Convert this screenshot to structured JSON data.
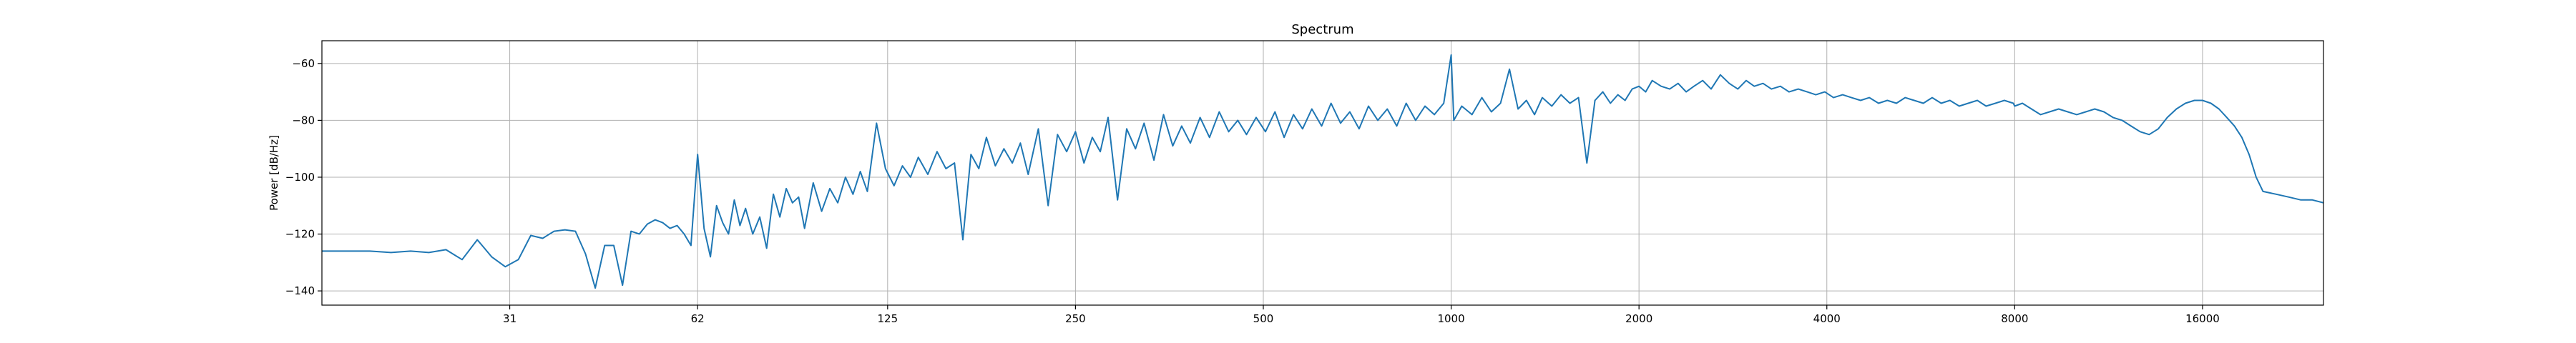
{
  "chart_data": {
    "type": "line",
    "title": "Spectrum",
    "xlabel": "",
    "ylabel": "Power [dB/Hz]",
    "xscale": "log2",
    "xlim": [
      15.5,
      25000
    ],
    "ylim": [
      -145,
      -52
    ],
    "grid": true,
    "xticks": [
      31,
      62,
      125,
      250,
      500,
      1000,
      2000,
      4000,
      8000,
      16000
    ],
    "xtick_labels": [
      "31",
      "62",
      "125",
      "250",
      "500",
      "1000",
      "2000",
      "4000",
      "8000",
      "16000"
    ],
    "yticks": [
      -60,
      -80,
      -100,
      -120,
      -140
    ],
    "ytick_labels": [
      "−60",
      "−80",
      "−100",
      "−120",
      "−140"
    ],
    "line_color": "#1f77b4",
    "series": [
      {
        "values": [
          [
            15.5,
            -126
          ],
          [
            17,
            -126
          ],
          [
            18.5,
            -126
          ],
          [
            20,
            -126.5
          ],
          [
            21.5,
            -126
          ],
          [
            23,
            -126.5
          ],
          [
            24.5,
            -125.5
          ],
          [
            26,
            -129
          ],
          [
            27.5,
            -122
          ],
          [
            29,
            -128
          ],
          [
            30.5,
            -131.5
          ],
          [
            32,
            -129
          ],
          [
            33.5,
            -120.5
          ],
          [
            35,
            -121.5
          ],
          [
            36.5,
            -119
          ],
          [
            38,
            -118.5
          ],
          [
            39.5,
            -119
          ],
          [
            41,
            -127
          ],
          [
            42.5,
            -139
          ],
          [
            44,
            -124
          ],
          [
            45.5,
            -124
          ],
          [
            47,
            -138
          ],
          [
            48.5,
            -119
          ],
          [
            50,
            -120
          ],
          [
            51.5,
            -116.5
          ],
          [
            53,
            -115
          ],
          [
            54.5,
            -116
          ],
          [
            56,
            -118
          ],
          [
            57.5,
            -117
          ],
          [
            59,
            -120
          ],
          [
            60.5,
            -124
          ],
          [
            62,
            -92
          ],
          [
            63.5,
            -118
          ],
          [
            65,
            -128
          ],
          [
            66.5,
            -110
          ],
          [
            68,
            -116
          ],
          [
            69.5,
            -120
          ],
          [
            71,
            -108
          ],
          [
            72.5,
            -117
          ],
          [
            74,
            -111
          ],
          [
            76,
            -120
          ],
          [
            78,
            -114
          ],
          [
            80,
            -125
          ],
          [
            82,
            -106
          ],
          [
            84,
            -114
          ],
          [
            86,
            -104
          ],
          [
            88,
            -109
          ],
          [
            90,
            -107
          ],
          [
            92,
            -118
          ],
          [
            95,
            -102
          ],
          [
            98,
            -112
          ],
          [
            101,
            -104
          ],
          [
            104,
            -109
          ],
          [
            107,
            -100
          ],
          [
            110,
            -106
          ],
          [
            113,
            -98
          ],
          [
            116,
            -105
          ],
          [
            120,
            -81
          ],
          [
            124,
            -97
          ],
          [
            128,
            -103
          ],
          [
            132,
            -96
          ],
          [
            136,
            -100
          ],
          [
            140,
            -93
          ],
          [
            145,
            -99
          ],
          [
            150,
            -91
          ],
          [
            155,
            -97
          ],
          [
            160,
            -95
          ],
          [
            165,
            -122
          ],
          [
            170,
            -92
          ],
          [
            175,
            -97
          ],
          [
            180,
            -86
          ],
          [
            186,
            -96
          ],
          [
            192,
            -90
          ],
          [
            198,
            -95
          ],
          [
            204,
            -88
          ],
          [
            210,
            -99
          ],
          [
            218,
            -83
          ],
          [
            226,
            -110
          ],
          [
            234,
            -85
          ],
          [
            242,
            -91
          ],
          [
            250,
            -84
          ],
          [
            258,
            -95
          ],
          [
            266,
            -86
          ],
          [
            274,
            -91
          ],
          [
            282,
            -79
          ],
          [
            292,
            -108
          ],
          [
            302,
            -83
          ],
          [
            312,
            -90
          ],
          [
            322,
            -81
          ],
          [
            334,
            -94
          ],
          [
            346,
            -78
          ],
          [
            358,
            -89
          ],
          [
            370,
            -82
          ],
          [
            382,
            -88
          ],
          [
            396,
            -79
          ],
          [
            410,
            -86
          ],
          [
            425,
            -77
          ],
          [
            440,
            -84
          ],
          [
            455,
            -80
          ],
          [
            470,
            -85
          ],
          [
            487,
            -79
          ],
          [
            504,
            -84
          ],
          [
            522,
            -77
          ],
          [
            540,
            -86
          ],
          [
            559,
            -78
          ],
          [
            578,
            -83
          ],
          [
            598,
            -76
          ],
          [
            620,
            -82
          ],
          [
            642,
            -74
          ],
          [
            665,
            -81
          ],
          [
            688,
            -77
          ],
          [
            712,
            -83
          ],
          [
            737,
            -75
          ],
          [
            763,
            -80
          ],
          [
            790,
            -76
          ],
          [
            818,
            -82
          ],
          [
            847,
            -74
          ],
          [
            877,
            -80
          ],
          [
            908,
            -75
          ],
          [
            940,
            -78
          ],
          [
            973,
            -74
          ],
          [
            1000,
            -57
          ],
          [
            1010,
            -80
          ],
          [
            1040,
            -75
          ],
          [
            1080,
            -78
          ],
          [
            1120,
            -72
          ],
          [
            1160,
            -77
          ],
          [
            1200,
            -74
          ],
          [
            1240,
            -62
          ],
          [
            1280,
            -76
          ],
          [
            1320,
            -73
          ],
          [
            1360,
            -78
          ],
          [
            1400,
            -72
          ],
          [
            1450,
            -75
          ],
          [
            1500,
            -71
          ],
          [
            1550,
            -74
          ],
          [
            1600,
            -72
          ],
          [
            1650,
            -95
          ],
          [
            1700,
            -73
          ],
          [
            1750,
            -70
          ],
          [
            1800,
            -74
          ],
          [
            1850,
            -71
          ],
          [
            1900,
            -73
          ],
          [
            1950,
            -69
          ],
          [
            2000,
            -68
          ],
          [
            2050,
            -70
          ],
          [
            2100,
            -66
          ],
          [
            2170,
            -68
          ],
          [
            2240,
            -69
          ],
          [
            2310,
            -67
          ],
          [
            2380,
            -70
          ],
          [
            2450,
            -68
          ],
          [
            2530,
            -66
          ],
          [
            2610,
            -69
          ],
          [
            2700,
            -64
          ],
          [
            2790,
            -67
          ],
          [
            2880,
            -69
          ],
          [
            2970,
            -66
          ],
          [
            3060,
            -68
          ],
          [
            3160,
            -67
          ],
          [
            3260,
            -69
          ],
          [
            3370,
            -68
          ],
          [
            3480,
            -70
          ],
          [
            3600,
            -69
          ],
          [
            3720,
            -70
          ],
          [
            3840,
            -71
          ],
          [
            3970,
            -70
          ],
          [
            4100,
            -72
          ],
          [
            4240,
            -71
          ],
          [
            4380,
            -72
          ],
          [
            4530,
            -73
          ],
          [
            4680,
            -72
          ],
          [
            4840,
            -74
          ],
          [
            5000,
            -73
          ],
          [
            5170,
            -74
          ],
          [
            5340,
            -72
          ],
          [
            5520,
            -73
          ],
          [
            5710,
            -74
          ],
          [
            5900,
            -72
          ],
          [
            6100,
            -74
          ],
          [
            6300,
            -73
          ],
          [
            6520,
            -75
          ],
          [
            6740,
            -74
          ],
          [
            6970,
            -73
          ],
          [
            7200,
            -75
          ],
          [
            7450,
            -74
          ],
          [
            7700,
            -73
          ],
          [
            7960,
            -74
          ],
          [
            8000,
            -75
          ],
          [
            8230,
            -74
          ],
          [
            8510,
            -76
          ],
          [
            8800,
            -78
          ],
          [
            9100,
            -77
          ],
          [
            9410,
            -76
          ],
          [
            9730,
            -77
          ],
          [
            10060,
            -78
          ],
          [
            10400,
            -77
          ],
          [
            10750,
            -76
          ],
          [
            11120,
            -77
          ],
          [
            11500,
            -79
          ],
          [
            11890,
            -80
          ],
          [
            12290,
            -82
          ],
          [
            12710,
            -84
          ],
          [
            13140,
            -85
          ],
          [
            13590,
            -83
          ],
          [
            14050,
            -79
          ],
          [
            14530,
            -76
          ],
          [
            15020,
            -74
          ],
          [
            15530,
            -73
          ],
          [
            16000,
            -73
          ],
          [
            16500,
            -74
          ],
          [
            17000,
            -76
          ],
          [
            17500,
            -79
          ],
          [
            18000,
            -82
          ],
          [
            18500,
            -86
          ],
          [
            19000,
            -92
          ],
          [
            19500,
            -100
          ],
          [
            20000,
            -105
          ],
          [
            21000,
            -106
          ],
          [
            22000,
            -107
          ],
          [
            23000,
            -108
          ],
          [
            24000,
            -108
          ],
          [
            25000,
            -109
          ]
        ]
      }
    ]
  }
}
